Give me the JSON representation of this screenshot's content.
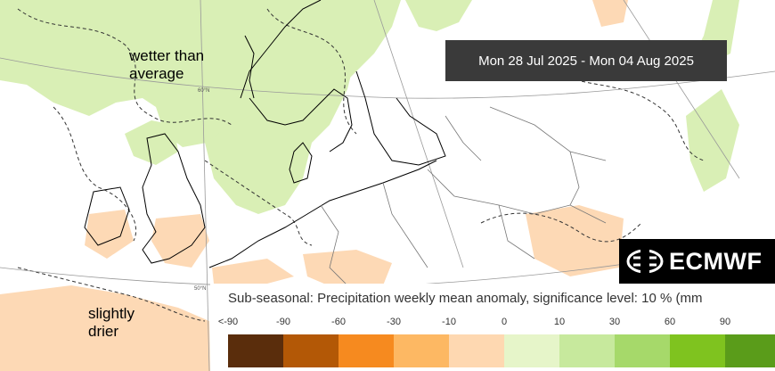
{
  "date_range": "Mon 28 Jul 2025 - Mon 04 Aug 2025",
  "annotations": {
    "wet": "wetter than average",
    "dry": "slightly drier"
  },
  "graticule": {
    "lat_60": "60°N",
    "lat_50": "50°N"
  },
  "logo": {
    "text": "ECMWF",
    "icon": "ecmwf-logo-icon"
  },
  "legend": {
    "title": "Sub-seasonal: Precipitation weekly mean anomaly, significance level: 10 % (mm",
    "ticks": [
      "<-90",
      "-90",
      "-60",
      "-30",
      "-10",
      "0",
      "10",
      "30",
      "60",
      "90",
      ">"
    ],
    "colors": [
      "#5a2d0c",
      "#b35806",
      "#f68a1f",
      "#fdb863",
      "#fed8b1",
      "#e6f5c9",
      "#c7e99d",
      "#a6d96a",
      "#7fc31f",
      "#5a9c1a"
    ]
  },
  "colors": {
    "wet_fill": "#d9efb5",
    "dry_fill": "#fdd9b5",
    "coast": "#000000",
    "border": "#777777",
    "grid": "#999999"
  }
}
